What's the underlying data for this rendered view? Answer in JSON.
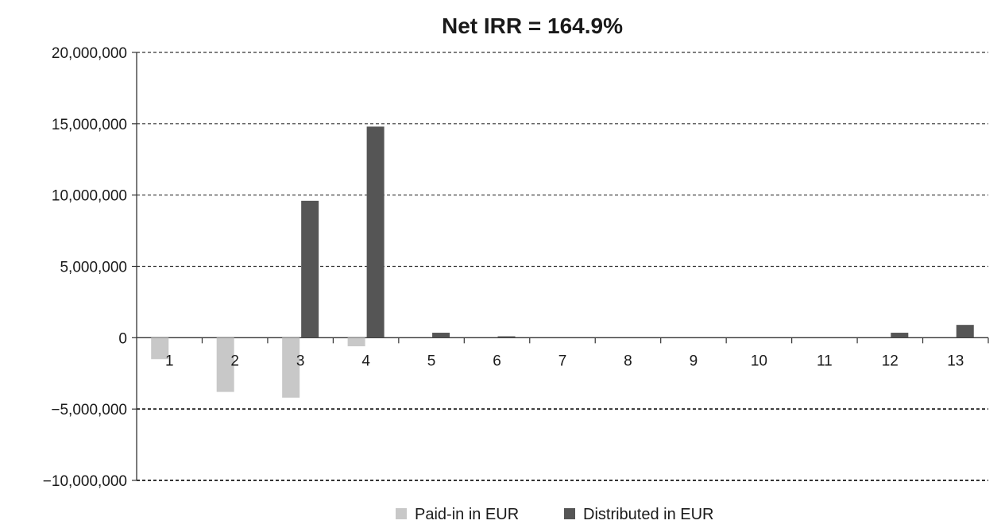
{
  "chart_data": {
    "type": "bar",
    "title": "Net IRR = 164.9%",
    "xlabel": "",
    "ylabel": "",
    "categories": [
      "1",
      "2",
      "3",
      "4",
      "5",
      "6",
      "7",
      "8",
      "9",
      "10",
      "11",
      "12",
      "13"
    ],
    "series": [
      {
        "name": "Paid-in in EUR",
        "color": "#c8c8c8",
        "values": [
          -1500000,
          -3800000,
          -4200000,
          -600000,
          0,
          0,
          0,
          0,
          0,
          0,
          0,
          0,
          0
        ]
      },
      {
        "name": "Distributed in EUR",
        "color": "#555555",
        "values": [
          0,
          0,
          9600000,
          14800000,
          350000,
          100000,
          0,
          0,
          0,
          0,
          0,
          350000,
          900000
        ]
      }
    ],
    "ylim": [
      -10000000,
      20000000
    ],
    "yticks": [
      20000000,
      15000000,
      10000000,
      5000000,
      0,
      -5000000,
      -10000000
    ],
    "ytick_labels": [
      "20,000,000",
      "15,000,000",
      "10,000,000",
      "5,000,000",
      "0",
      "−5,000,000",
      "−10,000,000"
    ],
    "grid": true,
    "legend_position": "bottom-center"
  }
}
